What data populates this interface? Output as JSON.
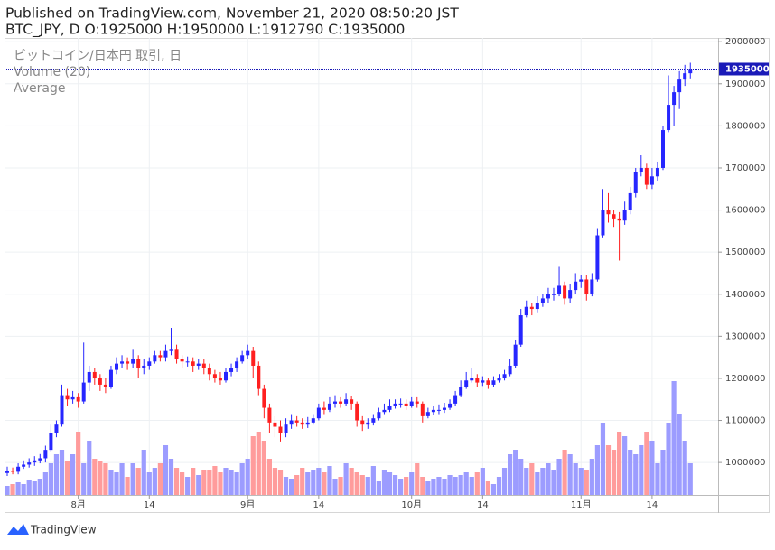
{
  "chart_data": {
    "type": "candlestick",
    "title": "Published on TradingView.com, November 21, 2020 08:50:20 JST",
    "subtitle": "BTC_JPY, D O:1925000 H:1950000 L:1912790 C:1935000",
    "legend": [
      "ビットコイン/日本円 取引, 日",
      "Volume (20)",
      "Average"
    ],
    "x": [
      "2020-07-19",
      "2020-07-20",
      "2020-07-21",
      "2020-07-22",
      "2020-07-23",
      "2020-07-24",
      "2020-07-25",
      "2020-07-26",
      "2020-07-27",
      "2020-07-28",
      "2020-07-29",
      "2020-07-30",
      "2020-07-31",
      "2020-08-01",
      "2020-08-02",
      "2020-08-03",
      "2020-08-04",
      "2020-08-05",
      "2020-08-06",
      "2020-08-07",
      "2020-08-08",
      "2020-08-09",
      "2020-08-10",
      "2020-08-11",
      "2020-08-12",
      "2020-08-13",
      "2020-08-14",
      "2020-08-15",
      "2020-08-16",
      "2020-08-17",
      "2020-08-18",
      "2020-08-19",
      "2020-08-20",
      "2020-08-21",
      "2020-08-22",
      "2020-08-23",
      "2020-08-24",
      "2020-08-25",
      "2020-08-26",
      "2020-08-27",
      "2020-08-28",
      "2020-08-29",
      "2020-08-30",
      "2020-08-31",
      "2020-09-01",
      "2020-09-02",
      "2020-09-03",
      "2020-09-04",
      "2020-09-05",
      "2020-09-06",
      "2020-09-07",
      "2020-09-08",
      "2020-09-09",
      "2020-09-10",
      "2020-09-11",
      "2020-09-12",
      "2020-09-13",
      "2020-09-14",
      "2020-09-15",
      "2020-09-16",
      "2020-09-17",
      "2020-09-18",
      "2020-09-19",
      "2020-09-20",
      "2020-09-21",
      "2020-09-22",
      "2020-09-23",
      "2020-09-24",
      "2020-09-25",
      "2020-09-26",
      "2020-09-27",
      "2020-09-28",
      "2020-09-29",
      "2020-09-30",
      "2020-10-01",
      "2020-10-02",
      "2020-10-03",
      "2020-10-04",
      "2020-10-05",
      "2020-10-06",
      "2020-10-07",
      "2020-10-08",
      "2020-10-09",
      "2020-10-10",
      "2020-10-11",
      "2020-10-12",
      "2020-10-13",
      "2020-10-14",
      "2020-10-15",
      "2020-10-16",
      "2020-10-17",
      "2020-10-18",
      "2020-10-19",
      "2020-10-20",
      "2020-10-21",
      "2020-10-22",
      "2020-10-23",
      "2020-10-24",
      "2020-10-25",
      "2020-10-26",
      "2020-10-27",
      "2020-10-28",
      "2020-10-29",
      "2020-10-30",
      "2020-10-31",
      "2020-11-01",
      "2020-11-02",
      "2020-11-03",
      "2020-11-04",
      "2020-11-05",
      "2020-11-06",
      "2020-11-07",
      "2020-11-08",
      "2020-11-09",
      "2020-11-10",
      "2020-11-11",
      "2020-11-12",
      "2020-11-13",
      "2020-11-14",
      "2020-11-15",
      "2020-11-16",
      "2020-11-17",
      "2020-11-18",
      "2020-11-19",
      "2020-11-20",
      "2020-11-21"
    ],
    "open": [
      975000,
      980000,
      978000,
      990000,
      995000,
      1000000,
      1005000,
      1010000,
      1030000,
      1070000,
      1090000,
      1160000,
      1150000,
      1155000,
      1145000,
      1190000,
      1215000,
      1200000,
      1185000,
      1180000,
      1220000,
      1235000,
      1240000,
      1235000,
      1245000,
      1225000,
      1230000,
      1240000,
      1255000,
      1250000,
      1265000,
      1270000,
      1245000,
      1240000,
      1240000,
      1230000,
      1235000,
      1225000,
      1210000,
      1200000,
      1195000,
      1215000,
      1225000,
      1240000,
      1255000,
      1265000,
      1230000,
      1175000,
      1130000,
      1095000,
      1085000,
      1070000,
      1090000,
      1100000,
      1095000,
      1090000,
      1095000,
      1105000,
      1130000,
      1125000,
      1140000,
      1145000,
      1140000,
      1150000,
      1140000,
      1100000,
      1090000,
      1095000,
      1105000,
      1120000,
      1125000,
      1135000,
      1140000,
      1140000,
      1135000,
      1145000,
      1140000,
      1110000,
      1120000,
      1125000,
      1125000,
      1130000,
      1140000,
      1160000,
      1180000,
      1195000,
      1200000,
      1190000,
      1195000,
      1185000,
      1195000,
      1200000,
      1210000,
      1230000,
      1280000,
      1350000,
      1370000,
      1365000,
      1380000,
      1390000,
      1400000,
      1400000,
      1420000,
      1390000,
      1410000,
      1430000,
      1435000,
      1400000,
      1435000,
      1540000,
      1600000,
      1590000,
      1580000,
      1575000,
      1600000,
      1640000,
      1690000,
      1700000,
      1660000,
      1680000,
      1700000,
      1790000,
      1850000,
      1880000,
      1910000,
      1925000
    ],
    "high": [
      990000,
      988000,
      998000,
      1005000,
      1010000,
      1015000,
      1020000,
      1040000,
      1090000,
      1100000,
      1185000,
      1175000,
      1170000,
      1165000,
      1285000,
      1230000,
      1225000,
      1210000,
      1200000,
      1230000,
      1250000,
      1255000,
      1250000,
      1270000,
      1255000,
      1245000,
      1250000,
      1265000,
      1265000,
      1280000,
      1320000,
      1280000,
      1255000,
      1252000,
      1250000,
      1245000,
      1245000,
      1235000,
      1220000,
      1215000,
      1225000,
      1235000,
      1250000,
      1265000,
      1280000,
      1275000,
      1240000,
      1185000,
      1140000,
      1110000,
      1100000,
      1105000,
      1115000,
      1110000,
      1105000,
      1108000,
      1115000,
      1140000,
      1145000,
      1155000,
      1160000,
      1155000,
      1165000,
      1158000,
      1145000,
      1110000,
      1105000,
      1115000,
      1130000,
      1140000,
      1150000,
      1150000,
      1152000,
      1150000,
      1155000,
      1155000,
      1145000,
      1130000,
      1135000,
      1138000,
      1142000,
      1150000,
      1170000,
      1195000,
      1215000,
      1225000,
      1210000,
      1205000,
      1200000,
      1205000,
      1210000,
      1220000,
      1245000,
      1290000,
      1365000,
      1385000,
      1380000,
      1395000,
      1400000,
      1415000,
      1415000,
      1465000,
      1430000,
      1425000,
      1450000,
      1445000,
      1445000,
      1450000,
      1555000,
      1650000,
      1640000,
      1600000,
      1595000,
      1620000,
      1655000,
      1700000,
      1730000,
      1710000,
      1700000,
      1715000,
      1800000,
      1920000,
      1895000,
      1930000,
      1945000,
      1950000
    ],
    "low": [
      968000,
      972000,
      972000,
      985000,
      988000,
      992000,
      998000,
      1000000,
      1025000,
      1060000,
      1085000,
      1135000,
      1140000,
      1130000,
      1140000,
      1170000,
      1185000,
      1170000,
      1165000,
      1175000,
      1210000,
      1225000,
      1220000,
      1225000,
      1200000,
      1210000,
      1220000,
      1235000,
      1240000,
      1240000,
      1255000,
      1235000,
      1225000,
      1228000,
      1215000,
      1220000,
      1210000,
      1195000,
      1190000,
      1185000,
      1190000,
      1205000,
      1215000,
      1235000,
      1245000,
      1200000,
      1160000,
      1105000,
      1070000,
      1060000,
      1050000,
      1060000,
      1080000,
      1085000,
      1080000,
      1082000,
      1090000,
      1100000,
      1115000,
      1120000,
      1130000,
      1130000,
      1135000,
      1125000,
      1085000,
      1075000,
      1080000,
      1088000,
      1100000,
      1115000,
      1120000,
      1128000,
      1130000,
      1125000,
      1130000,
      1130000,
      1095000,
      1105000,
      1112000,
      1115000,
      1118000,
      1125000,
      1135000,
      1155000,
      1175000,
      1190000,
      1180000,
      1182000,
      1175000,
      1180000,
      1190000,
      1195000,
      1205000,
      1225000,
      1275000,
      1345000,
      1350000,
      1355000,
      1370000,
      1380000,
      1385000,
      1395000,
      1375000,
      1380000,
      1400000,
      1415000,
      1385000,
      1395000,
      1430000,
      1535000,
      1570000,
      1560000,
      1480000,
      1565000,
      1590000,
      1630000,
      1680000,
      1650000,
      1650000,
      1670000,
      1695000,
      1785000,
      1800000,
      1840000,
      1895000,
      1912790
    ],
    "close": [
      980000,
      978000,
      990000,
      995000,
      1000000,
      1005000,
      1010000,
      1030000,
      1070000,
      1090000,
      1160000,
      1150000,
      1155000,
      1145000,
      1190000,
      1215000,
      1200000,
      1185000,
      1180000,
      1220000,
      1235000,
      1240000,
      1235000,
      1245000,
      1225000,
      1230000,
      1240000,
      1255000,
      1250000,
      1265000,
      1270000,
      1245000,
      1240000,
      1240000,
      1230000,
      1235000,
      1225000,
      1210000,
      1200000,
      1195000,
      1215000,
      1225000,
      1240000,
      1255000,
      1265000,
      1230000,
      1175000,
      1130000,
      1095000,
      1085000,
      1070000,
      1090000,
      1100000,
      1095000,
      1090000,
      1095000,
      1105000,
      1130000,
      1125000,
      1140000,
      1145000,
      1140000,
      1150000,
      1140000,
      1100000,
      1090000,
      1095000,
      1105000,
      1120000,
      1125000,
      1135000,
      1140000,
      1140000,
      1135000,
      1145000,
      1140000,
      1110000,
      1120000,
      1125000,
      1125000,
      1130000,
      1140000,
      1160000,
      1180000,
      1195000,
      1200000,
      1190000,
      1195000,
      1185000,
      1195000,
      1200000,
      1210000,
      1230000,
      1280000,
      1350000,
      1370000,
      1365000,
      1380000,
      1390000,
      1400000,
      1400000,
      1420000,
      1390000,
      1410000,
      1430000,
      1435000,
      1400000,
      1435000,
      1540000,
      1600000,
      1590000,
      1580000,
      1575000,
      1600000,
      1640000,
      1690000,
      1700000,
      1660000,
      1680000,
      1700000,
      1790000,
      1850000,
      1880000,
      1910000,
      1925000,
      1935000
    ],
    "volume": [
      10,
      12,
      14,
      12,
      16,
      15,
      18,
      25,
      35,
      45,
      50,
      38,
      45,
      70,
      35,
      60,
      40,
      38,
      35,
      28,
      25,
      35,
      20,
      35,
      30,
      50,
      25,
      30,
      35,
      55,
      40,
      30,
      25,
      20,
      30,
      22,
      28,
      28,
      32,
      25,
      30,
      28,
      25,
      35,
      40,
      65,
      70,
      60,
      40,
      30,
      28,
      20,
      18,
      22,
      30,
      25,
      28,
      30,
      25,
      32,
      18,
      20,
      35,
      30,
      25,
      22,
      20,
      32,
      15,
      28,
      25,
      22,
      18,
      20,
      25,
      35,
      20,
      15,
      18,
      20,
      18,
      22,
      20,
      22,
      25,
      20,
      25,
      30,
      15,
      12,
      20,
      30,
      45,
      50,
      40,
      30,
      35,
      25,
      30,
      35,
      28,
      40,
      50,
      45,
      35,
      30,
      28,
      40,
      55,
      80,
      55,
      50,
      70,
      65,
      50,
      45,
      55,
      70,
      60,
      35,
      50,
      80,
      126,
      90,
      60,
      35
    ],
    "up_color": "#2626ff",
    "down_color": "#ff1f1f",
    "volume_up_color": "#9c9cff",
    "volume_down_color": "#ff9c9c",
    "last_price_color": "#1a1ab8",
    "ylim": [
      923000,
      2009000
    ],
    "yticks": [
      1000000,
      1100000,
      1200000,
      1300000,
      1400000,
      1500000,
      1600000,
      1700000,
      1800000,
      1900000,
      2000000
    ],
    "xticks": [
      {
        "value": "2020-08-01",
        "label": "8月"
      },
      {
        "value": "2020-08-14",
        "label": "14"
      },
      {
        "value": "2020-09-01",
        "label": "9月"
      },
      {
        "value": "2020-09-14",
        "label": "14"
      },
      {
        "value": "2020-10-01",
        "label": "10月"
      },
      {
        "value": "2020-10-14",
        "label": "14"
      },
      {
        "value": "2020-11-01",
        "label": "11月"
      },
      {
        "value": "2020-11-14",
        "label": "14"
      }
    ],
    "grid": true
  },
  "footer": {
    "brand": "TradingView"
  }
}
